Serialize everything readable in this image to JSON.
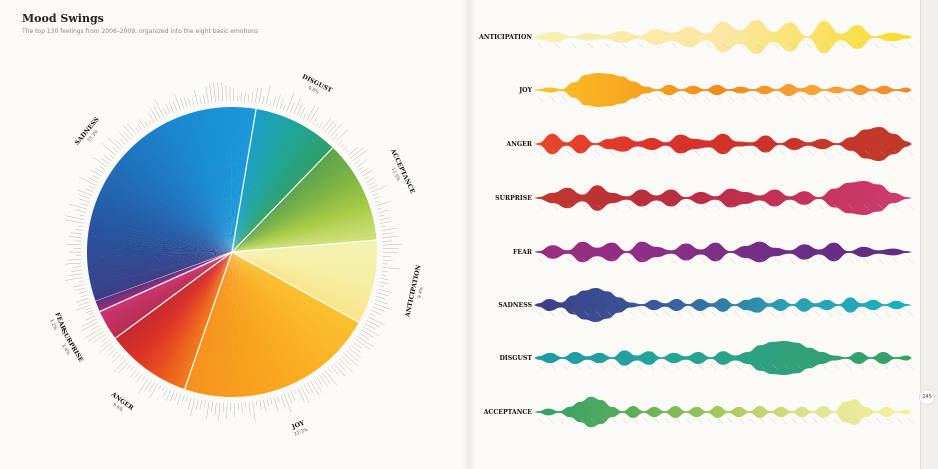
{
  "page": {
    "title": "Mood Swings",
    "subtitle": "The top 130 feelings from 2006–2009, organized into the eight basic emotions",
    "page_number": "245"
  },
  "chart_data": [
    {
      "type": "pie",
      "categories": [
        "Sadness",
        "Disgust",
        "Acceptance",
        "Anticipation",
        "Joy",
        "Anger",
        "Surprise",
        "Fear"
      ],
      "labels": [
        "SADNESS",
        "DISGUST",
        "ACCEPTANCE",
        "ANTICIPATION",
        "JOY",
        "ANGER",
        "SURPRISE",
        "FEAR"
      ],
      "percent_labels": [
        "33.3%",
        "9.6%",
        "11.5%",
        "9.4%",
        "22.3%",
        "9.6%",
        "3.4%",
        "1.2%"
      ],
      "values": [
        33.3,
        9.6,
        11.5,
        9.4,
        22.3,
        9.6,
        3.4,
        1.2
      ],
      "colors": [
        [
          "#3a3f86",
          "#27559f",
          "#1f72bc",
          "#1a8ad2",
          "#1a99da"
        ],
        [
          "#1aa0c4",
          "#1fa596",
          "#2f9f6c"
        ],
        [
          "#5da34d",
          "#7fb444",
          "#a8cb45",
          "#cfe07a"
        ],
        [
          "#f1f2b0",
          "#f6efa6",
          "#f9e58c"
        ],
        [
          "#fbc02d",
          "#f9a81e",
          "#f6921e"
        ],
        [
          "#f07a1c",
          "#e8531e",
          "#dc3127",
          "#c72a2e"
        ],
        [
          "#b82d52",
          "#c8356f"
        ],
        [
          "#8e2f7a",
          "#6a2f7d"
        ]
      ]
    },
    {
      "type": "area",
      "series": [
        {
          "name": "ANTICIPATION",
          "colors": [
            "#f7efb0",
            "#fbe7a3",
            "#f7dc2a"
          ],
          "values": [
            0.15,
            0.3,
            0.05,
            0.2,
            0.12,
            0.35,
            0.1,
            0.45,
            0.25,
            0.6,
            0.2,
            0.9,
            0.4,
            1,
            0.3,
            0.85,
            0.05,
            0.95,
            0.2,
            0.7,
            0.05,
            0.25,
            0.1
          ]
        },
        {
          "name": "JOY",
          "colors": [
            "#fbc42c",
            "#f7a71d",
            "#f08a1f",
            "#f5a63a",
            "#f0872a"
          ],
          "values": [
            0.05,
            0.15,
            0.05,
            0.45,
            0.9,
            1,
            0.95,
            0.8,
            0.5,
            0.2,
            0.05,
            0.3,
            0.05,
            0.25,
            0.05,
            0.3,
            0.05,
            0.2,
            0.05,
            0.25,
            0.05,
            0.35,
            0.1,
            0.3,
            0.05,
            0.2,
            0.05,
            0.3,
            0.05,
            0.25,
            0.05,
            0.15
          ]
        },
        {
          "name": "ANGER",
          "colors": [
            "#e8482a",
            "#d9322c",
            "#c8342b",
            "#c0392b"
          ],
          "values": [
            0.05,
            0.6,
            0.1,
            0.55,
            0.05,
            0.3,
            0.45,
            0.15,
            0.35,
            0.1,
            0.55,
            0.3,
            0.2,
            0.6,
            0.15,
            0.1,
            0.5,
            0.05,
            0.35,
            0.1,
            0.3,
            0.05,
            0.4,
            0.85,
            1,
            0.6,
            0.15
          ]
        },
        {
          "name": "SURPRISE",
          "colors": [
            "#c0392b",
            "#b82d3e",
            "#c3305a",
            "#ce3d72"
          ],
          "values": [
            0.05,
            0.3,
            0.6,
            0.2,
            0.75,
            0.3,
            0.1,
            0.5,
            0.15,
            0.5,
            0.05,
            0.35,
            0.1,
            0.55,
            0.35,
            0.15,
            0.5,
            0.1,
            0.4,
            0.05,
            0.55,
            0.9,
            1,
            0.8,
            0.3,
            0.05
          ]
        },
        {
          "name": "FEAR",
          "colors": [
            "#9c2d80",
            "#8b2f85",
            "#6c2f84",
            "#5c2d82"
          ],
          "values": [
            0.05,
            0.4,
            0.1,
            0.6,
            0.25,
            0.55,
            0.05,
            0.6,
            0.3,
            0.1,
            0.5,
            0.15,
            0.55,
            0.05,
            0.35,
            0.6,
            0.25,
            0.1,
            0.45,
            0.15,
            0.55,
            0.05,
            0.3,
            0.1,
            0.2,
            0.05
          ]
        },
        {
          "name": "SADNESS",
          "colors": [
            "#3c3e85",
            "#3a5a9a",
            "#2aa0b0",
            "#1bb0c0"
          ],
          "values": [
            0.1,
            0.35,
            0.15,
            0.55,
            0.85,
            1,
            0.8,
            0.45,
            0.15,
            0.05,
            0.3,
            0.1,
            0.35,
            0.05,
            0.35,
            0.1,
            0.4,
            0.05,
            0.3,
            0.45,
            0.1,
            0.35,
            0.05,
            0.4,
            0.1,
            0.3,
            0.05,
            0.45,
            0.1,
            0.3,
            0.05,
            0.25,
            0.05
          ]
        },
        {
          "name": "DISGUST",
          "colors": [
            "#1f9aa6",
            "#26a39c",
            "#2fa07a",
            "#36a068"
          ],
          "values": [
            0.1,
            0.3,
            0.05,
            0.35,
            0.1,
            0.3,
            0.05,
            0.45,
            0.15,
            0.4,
            0.05,
            0.3,
            0.1,
            0.35,
            0.05,
            0.4,
            0.15,
            0.35,
            0.75,
            0.95,
            1,
            0.9,
            0.6,
            0.35,
            0.15,
            0.05,
            0.35,
            0.05,
            0.35,
            0.05,
            0.15
          ]
        },
        {
          "name": "ACCEPTANCE",
          "colors": [
            "#2fa06a",
            "#5aac5a",
            "#a7c95a",
            "#e2e596",
            "#f6f0a0"
          ],
          "values": [
            0.05,
            0.2,
            0.05,
            0.3,
            0.6,
            0.9,
            0.7,
            0.3,
            0.05,
            0.35,
            0.05,
            0.3,
            0.05,
            0.35,
            0.05,
            0.3,
            0.05,
            0.35,
            0.05,
            0.3,
            0.05,
            0.35,
            0.05,
            0.3,
            0.05,
            0.3,
            0.05,
            0.35,
            0.05,
            0.6,
            0.75,
            0.3,
            0.05,
            0.3,
            0.05,
            0.15
          ]
        }
      ]
    }
  ]
}
